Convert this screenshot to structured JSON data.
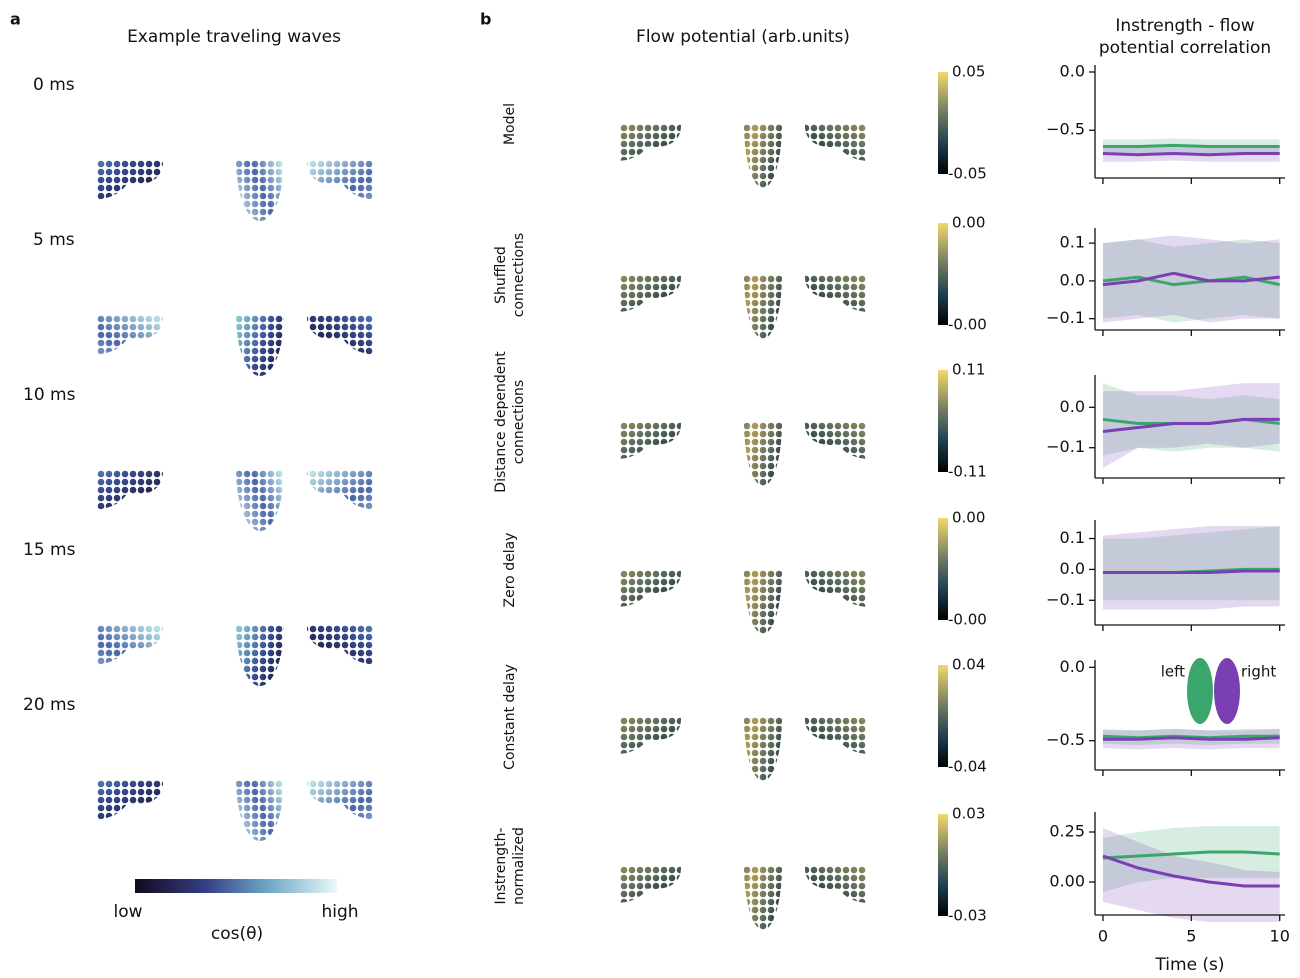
{
  "panel_a": {
    "letter": "a",
    "title": "Example traveling waves",
    "time_labels": [
      "0 ms",
      "5 ms",
      "10 ms",
      "15 ms",
      "20 ms"
    ],
    "colorbar": {
      "low": "low",
      "high": "high",
      "label": "cos(θ)"
    }
  },
  "panel_b": {
    "letter": "b",
    "title": "Flow potential (arb.units)",
    "row_labels": [
      [
        "Model"
      ],
      [
        "Shuffled",
        "connections"
      ],
      [
        "Distance dependent",
        "connections"
      ],
      [
        "Zero delay"
      ],
      [
        "Constant delay"
      ],
      [
        "Instrength-",
        "normalized"
      ]
    ],
    "colorbars": [
      {
        "max": "0.05",
        "min": "-0.05"
      },
      {
        "max": "0.00",
        "min": "-0.00"
      },
      {
        "max": "0.11",
        "min": "-0.11"
      },
      {
        "max": "0.00",
        "min": "-0.00"
      },
      {
        "max": "0.04",
        "min": "-0.04"
      },
      {
        "max": "0.03",
        "min": "-0.03"
      }
    ],
    "column_title": [
      "Instrength - flow",
      "potential correlation"
    ]
  },
  "chart_data": [
    {
      "type": "line",
      "x": [
        0,
        2,
        4,
        6,
        8,
        10
      ],
      "xlim": [
        -0.45,
        10.3
      ],
      "xticks": [
        0,
        5,
        10
      ],
      "show_xticklabels": false,
      "ylim": [
        -0.91,
        0.06
      ],
      "yticks": [
        {
          "value": 0,
          "label": "0.0"
        },
        {
          "value": -0.5,
          "label": "−0.5"
        }
      ],
      "series": [
        {
          "name": "left",
          "color": "#3ba66b",
          "values": [
            -0.64,
            -0.64,
            -0.63,
            -0.64,
            -0.64,
            -0.64
          ],
          "lower": [
            -0.7,
            -0.7,
            -0.69,
            -0.7,
            -0.7,
            -0.7
          ],
          "upper": [
            -0.58,
            -0.58,
            -0.57,
            -0.58,
            -0.58,
            -0.58
          ]
        },
        {
          "name": "right",
          "color": "#7a3fb3",
          "values": [
            -0.7,
            -0.71,
            -0.7,
            -0.71,
            -0.7,
            -0.7
          ],
          "lower": [
            -0.77,
            -0.77,
            -0.76,
            -0.77,
            -0.77,
            -0.77
          ],
          "upper": [
            -0.65,
            -0.65,
            -0.64,
            -0.65,
            -0.65,
            -0.65
          ]
        }
      ]
    },
    {
      "type": "line",
      "x": [
        0,
        2,
        4,
        6,
        8,
        10
      ],
      "xlim": [
        -0.45,
        10.3
      ],
      "xticks": [
        0,
        5,
        10
      ],
      "show_xticklabels": false,
      "ylim": [
        -0.13,
        0.14
      ],
      "yticks": [
        0.1,
        {
          "value": 0,
          "label": "0.0"
        },
        {
          "value": -0.1,
          "label": "−0.1"
        }
      ],
      "series": [
        {
          "name": "left",
          "color": "#3ba66b",
          "values": [
            0.0,
            0.01,
            -0.01,
            0.0,
            0.01,
            -0.01
          ],
          "lower": [
            -0.1,
            -0.09,
            -0.11,
            -0.1,
            -0.09,
            -0.1
          ],
          "upper": [
            0.1,
            0.11,
            0.09,
            0.1,
            0.11,
            0.1
          ]
        },
        {
          "name": "right",
          "color": "#7a3fb3",
          "values": [
            -0.01,
            0.0,
            0.02,
            0.0,
            0.0,
            0.01
          ],
          "lower": [
            -0.11,
            -0.1,
            -0.09,
            -0.11,
            -0.1,
            -0.1
          ],
          "upper": [
            0.1,
            0.11,
            0.12,
            0.11,
            0.1,
            0.11
          ]
        }
      ]
    },
    {
      "type": "line",
      "x": [
        0,
        2,
        4,
        6,
        8,
        10
      ],
      "xlim": [
        -0.45,
        10.3
      ],
      "xticks": [
        0,
        5,
        10
      ],
      "show_xticklabels": false,
      "ylim": [
        -0.175,
        0.08
      ],
      "yticks": [
        {
          "value": 0,
          "label": "0.0"
        },
        {
          "value": -0.1,
          "label": "−0.1"
        }
      ],
      "series": [
        {
          "name": "left",
          "color": "#3ba66b",
          "values": [
            -0.03,
            -0.04,
            -0.04,
            -0.04,
            -0.03,
            -0.04
          ],
          "lower": [
            -0.12,
            -0.1,
            -0.11,
            -0.1,
            -0.1,
            -0.11
          ],
          "upper": [
            0.06,
            0.03,
            0.03,
            0.02,
            0.03,
            0.02
          ]
        },
        {
          "name": "right",
          "color": "#7a3fb3",
          "values": [
            -0.06,
            -0.05,
            -0.04,
            -0.04,
            -0.03,
            -0.03
          ],
          "lower": [
            -0.15,
            -0.1,
            -0.1,
            -0.09,
            -0.1,
            -0.09
          ],
          "upper": [
            0.04,
            0.04,
            0.04,
            0.05,
            0.06,
            0.06
          ]
        }
      ]
    },
    {
      "type": "line",
      "x": [
        0,
        2,
        4,
        6,
        8,
        10
      ],
      "xlim": [
        -0.45,
        10.3
      ],
      "xticks": [
        0,
        5,
        10
      ],
      "show_xticklabels": false,
      "ylim": [
        -0.18,
        0.16
      ],
      "yticks": [
        0.1,
        {
          "value": 0,
          "label": "0.0"
        },
        {
          "value": -0.1,
          "label": "−0.1"
        }
      ],
      "series": [
        {
          "name": "left",
          "color": "#3ba66b",
          "values": [
            -0.01,
            -0.01,
            -0.01,
            -0.005,
            0.0,
            0.0
          ],
          "lower": [
            -0.1,
            -0.1,
            -0.1,
            -0.1,
            -0.1,
            -0.1
          ],
          "upper": [
            0.1,
            0.1,
            0.11,
            0.12,
            0.13,
            0.14
          ]
        },
        {
          "name": "right",
          "color": "#7a3fb3",
          "values": [
            -0.01,
            -0.01,
            -0.01,
            -0.01,
            -0.005,
            -0.005
          ],
          "lower": [
            -0.13,
            -0.13,
            -0.13,
            -0.13,
            -0.12,
            -0.12
          ],
          "upper": [
            0.11,
            0.12,
            0.13,
            0.14,
            0.14,
            0.14
          ]
        }
      ]
    },
    {
      "type": "line",
      "x": [
        0,
        2,
        4,
        6,
        8,
        10
      ],
      "xlim": [
        -0.45,
        10.3
      ],
      "xticks": [
        0,
        5,
        10
      ],
      "show_xticklabels": false,
      "ylim": [
        -0.7,
        0.05
      ],
      "yticks": [
        {
          "value": 0,
          "label": "0.0"
        },
        {
          "value": -0.5,
          "label": "−0.5"
        }
      ],
      "legend": "top right",
      "series": [
        {
          "name": "left",
          "color": "#3ba66b",
          "values": [
            -0.47,
            -0.48,
            -0.47,
            -0.48,
            -0.47,
            -0.47
          ],
          "lower": [
            -0.52,
            -0.53,
            -0.52,
            -0.53,
            -0.52,
            -0.52
          ],
          "upper": [
            -0.42,
            -0.43,
            -0.42,
            -0.43,
            -0.42,
            -0.42
          ]
        },
        {
          "name": "right",
          "color": "#7a3fb3",
          "values": [
            -0.49,
            -0.49,
            -0.48,
            -0.49,
            -0.49,
            -0.48
          ],
          "lower": [
            -0.55,
            -0.56,
            -0.55,
            -0.56,
            -0.55,
            -0.55
          ],
          "upper": [
            -0.43,
            -0.43,
            -0.42,
            -0.43,
            -0.43,
            -0.42
          ]
        }
      ]
    },
    {
      "type": "line",
      "x": [
        0,
        2,
        4,
        6,
        8,
        10
      ],
      "xlim": [
        -0.45,
        10.3
      ],
      "xticks": [
        0,
        5,
        10
      ],
      "show_xticklabels": true,
      "xlabel": "Time (s)",
      "ylim": [
        -0.165,
        0.35
      ],
      "yticks": [
        {
          "value": 0.25,
          "label": "0.25"
        },
        {
          "value": 0,
          "label": "0.00"
        }
      ],
      "series": [
        {
          "name": "left",
          "color": "#3ba66b",
          "values": [
            0.12,
            0.13,
            0.14,
            0.15,
            0.15,
            0.14
          ],
          "lower": [
            -0.05,
            0.0,
            0.02,
            0.02,
            0.02,
            0.02
          ],
          "upper": [
            0.22,
            0.25,
            0.27,
            0.28,
            0.28,
            0.28
          ]
        },
        {
          "name": "right",
          "color": "#7a3fb3",
          "values": [
            0.13,
            0.07,
            0.03,
            0.0,
            -0.02,
            -0.02
          ],
          "lower": [
            -0.1,
            -0.14,
            -0.18,
            -0.2,
            -0.2,
            -0.2
          ],
          "upper": [
            0.27,
            0.2,
            0.13,
            0.1,
            0.06,
            0.05
          ]
        }
      ]
    }
  ]
}
